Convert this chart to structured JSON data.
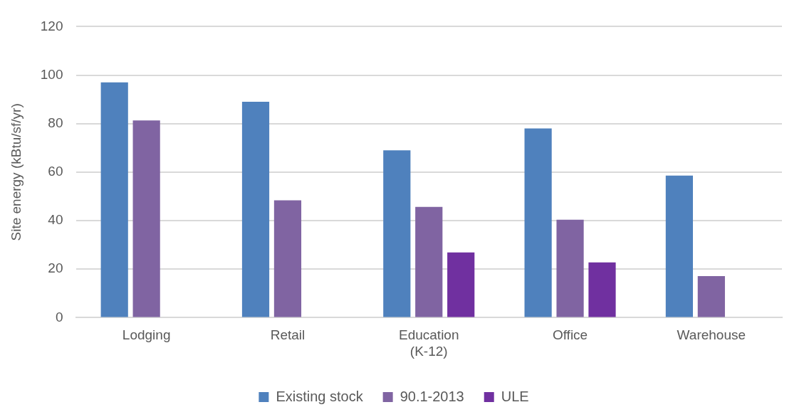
{
  "chart_data": {
    "type": "bar",
    "ylabel": "Site energy (kBtu/sf/yr)",
    "categories": [
      "Lodging",
      "Retail",
      "Education\n(K-12)",
      "Office",
      "Warehouse"
    ],
    "series": [
      {
        "name": "Existing stock",
        "color": "#4f81bd",
        "values": [
          97,
          89,
          69,
          78,
          58.6
        ]
      },
      {
        "name": "90.1-2013",
        "color": "#8064a2",
        "values": [
          81.3,
          48.4,
          45.7,
          40.4,
          17.1
        ]
      },
      {
        "name": "ULE",
        "color": "#7030a0",
        "values": [
          null,
          null,
          26.9,
          22.8,
          null
        ]
      }
    ],
    "ylim": [
      0,
      120
    ],
    "yticks": [
      0,
      20,
      40,
      60,
      80,
      100,
      120
    ],
    "grid": "y",
    "legend": "bottom"
  }
}
